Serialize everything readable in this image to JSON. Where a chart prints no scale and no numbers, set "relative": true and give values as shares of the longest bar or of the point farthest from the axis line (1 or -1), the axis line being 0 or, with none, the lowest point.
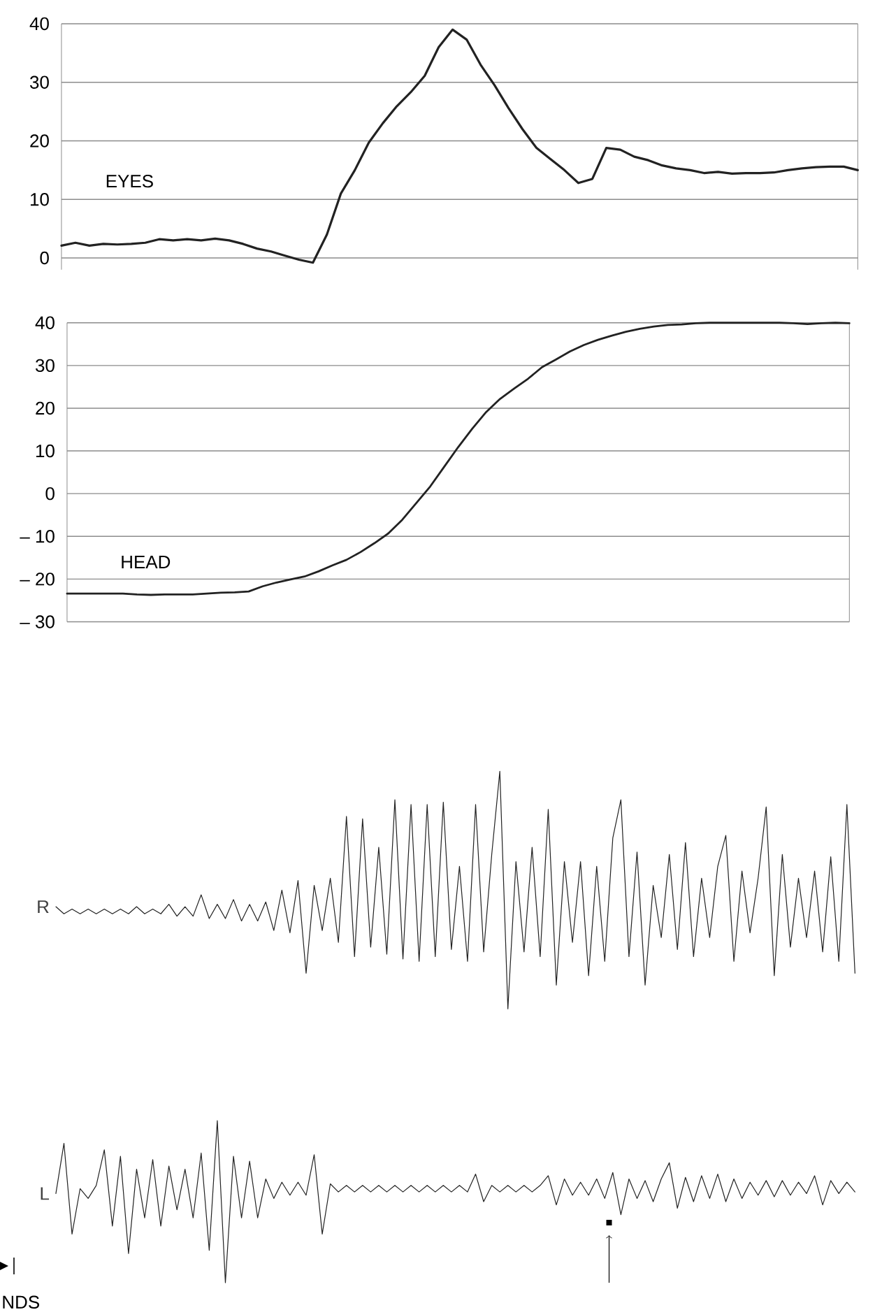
{
  "chart_data": [
    {
      "type": "line",
      "annotations": [
        "EYES"
      ],
      "grid": "y",
      "tick_labels": "y",
      "ylim": [
        -2,
        40
      ],
      "yticks": [
        0,
        10,
        20,
        30,
        40
      ],
      "categories": [
        null,
        null,
        null,
        null,
        null,
        null,
        null,
        null,
        null,
        null,
        null,
        null,
        null,
        null,
        null,
        null,
        null,
        null,
        null,
        null,
        null,
        null,
        null,
        null,
        null,
        null,
        null,
        null,
        null,
        null,
        null,
        null,
        null,
        null,
        null,
        null,
        null,
        null,
        null,
        null,
        null,
        null,
        null,
        null,
        null,
        null,
        null,
        null,
        null,
        null,
        null,
        null,
        null,
        null,
        null,
        null,
        null,
        null
      ],
      "series": [
        {
          "color": "#222222",
          "values": [
            2.1,
            2.6,
            2.1,
            2.4,
            2.3,
            2.4,
            2.6,
            3.2,
            3.0,
            3.2,
            3.0,
            3.3,
            3.0,
            2.4,
            1.6,
            1.1,
            0.4,
            -0.3,
            -0.8,
            4.0,
            11.0,
            15.0,
            19.7,
            23.0,
            25.9,
            28.3,
            31.1,
            36.0,
            39.0,
            37.3,
            33.0,
            29.5,
            25.6,
            22.0,
            18.8,
            16.9,
            15.0,
            12.8,
            13.5,
            18.8,
            18.5,
            17.3,
            16.7,
            15.8,
            15.3,
            15.0,
            14.5,
            14.7,
            14.4,
            14.5,
            14.5,
            14.6,
            15.0,
            15.3,
            15.5,
            15.6,
            15.6,
            15.0
          ]
        }
      ]
    },
    {
      "type": "line",
      "annotations": [
        "HEAD"
      ],
      "grid": "y",
      "tick_labels": "y",
      "ylim": [
        -30,
        40
      ],
      "yticks": [
        {
          "value": -30,
          "label": "– 30"
        },
        {
          "value": -20,
          "label": "– 20"
        },
        {
          "value": -10,
          "label": "– 10"
        },
        0,
        10,
        20,
        30,
        40
      ],
      "categories": [
        null,
        null,
        null,
        null,
        null,
        null,
        null,
        null,
        null,
        null,
        null,
        null,
        null,
        null,
        null,
        null,
        null,
        null,
        null,
        null,
        null,
        null,
        null,
        null,
        null,
        null,
        null,
        null,
        null,
        null,
        null,
        null,
        null,
        null,
        null,
        null,
        null,
        null,
        null,
        null,
        null,
        null,
        null,
        null,
        null,
        null,
        null,
        null,
        null,
        null,
        null,
        null,
        null,
        null,
        null,
        null,
        null
      ],
      "series": [
        {
          "color": "#222222",
          "values": [
            -23.4,
            -23.4,
            -23.4,
            -23.4,
            -23.4,
            -23.6,
            -23.7,
            -23.6,
            -23.6,
            -23.6,
            -23.4,
            -23.2,
            -23.1,
            -22.9,
            -21.7,
            -20.8,
            -20.1,
            -19.4,
            -18.2,
            -16.8,
            -15.5,
            -13.7,
            -11.6,
            -9.3,
            -6.1,
            -2.2,
            1.7,
            6.3,
            10.9,
            15.2,
            19.1,
            22.2,
            24.6,
            26.9,
            29.6,
            31.4,
            33.3,
            34.8,
            36.0,
            37.0,
            37.9,
            38.6,
            39.1,
            39.5,
            39.6,
            39.9,
            40.0,
            40.0,
            40.0,
            40.0,
            40.0,
            40.0,
            39.9,
            39.7,
            39.9,
            40.0,
            39.9
          ]
        }
      ]
    },
    {
      "type": "line",
      "relative": true,
      "categories": [
        null,
        null,
        null,
        null,
        null,
        null,
        null,
        null,
        null,
        null,
        null,
        null,
        null,
        null,
        null,
        null,
        null,
        null,
        null,
        null,
        null,
        null,
        null,
        null,
        null,
        null,
        null,
        null,
        null,
        null,
        null,
        null,
        null,
        null,
        null,
        null,
        null,
        null,
        null,
        null,
        null,
        null,
        null,
        null,
        null,
        null,
        null,
        null,
        null,
        null,
        null,
        null,
        null,
        null,
        null,
        null,
        null,
        null,
        null,
        null,
        null,
        null,
        null,
        null,
        null,
        null,
        null,
        null,
        null,
        null,
        null,
        null,
        null,
        null,
        null,
        null,
        null,
        null,
        null,
        null,
        null,
        null,
        null,
        null,
        null,
        null,
        null,
        null,
        null,
        null,
        null,
        null,
        null,
        null,
        null,
        null,
        null,
        null,
        null,
        null
      ],
      "series": [
        {
          "name": "R",
          "color": "#222222",
          "values": [
            0.43,
            0.4,
            0.42,
            0.4,
            0.42,
            0.4,
            0.42,
            0.4,
            0.42,
            0.4,
            0.43,
            0.4,
            0.42,
            0.4,
            0.44,
            0.39,
            0.43,
            0.39,
            0.48,
            0.38,
            0.44,
            0.38,
            0.46,
            0.37,
            0.44,
            0.37,
            0.45,
            0.33,
            0.5,
            0.32,
            0.54,
            0.15,
            0.52,
            0.33,
            0.55,
            0.28,
            0.81,
            0.22,
            0.8,
            0.26,
            0.68,
            0.23,
            0.88,
            0.21,
            0.86,
            0.2,
            0.86,
            0.22,
            0.87,
            0.25,
            0.6,
            0.2,
            0.86,
            0.24,
            0.65,
            1.0,
            0.0,
            0.62,
            0.24,
            0.68,
            0.22,
            0.84,
            0.1,
            0.62,
            0.28,
            0.62,
            0.14,
            0.6,
            0.2,
            0.72,
            0.88,
            0.22,
            0.66,
            0.1,
            0.52,
            0.3,
            0.65,
            0.25,
            0.7,
            0.22,
            0.55,
            0.3,
            0.6,
            0.73,
            0.2,
            0.58,
            0.32,
            0.55,
            0.85,
            0.14,
            0.65,
            0.26,
            0.55,
            0.3,
            0.58,
            0.24,
            0.64,
            0.2,
            0.86,
            0.15
          ]
        }
      ]
    },
    {
      "type": "line",
      "relative": true,
      "annotations": [
        "NDS"
      ],
      "categories": [
        null,
        null,
        null,
        null,
        null,
        null,
        null,
        null,
        null,
        null,
        null,
        null,
        null,
        null,
        null,
        null,
        null,
        null,
        null,
        null,
        null,
        null,
        null,
        null,
        null,
        null,
        null,
        null,
        null,
        null,
        null,
        null,
        null,
        null,
        null,
        null,
        null,
        null,
        null,
        null,
        null,
        null,
        null,
        null,
        null,
        null,
        null,
        null,
        null,
        null,
        null,
        null,
        null,
        null,
        null,
        null,
        null,
        null,
        null,
        null,
        null,
        null,
        null,
        null,
        null,
        null,
        null,
        null,
        null,
        null,
        null,
        null,
        null,
        null,
        null,
        null,
        null,
        null,
        null,
        null,
        null,
        null,
        null,
        null,
        null,
        null,
        null,
        null,
        null,
        null,
        null,
        null,
        null,
        null,
        null,
        null,
        null,
        null,
        null,
        null
      ],
      "series": [
        {
          "name": "L",
          "color": "#222222",
          "values": [
            0.55,
            0.86,
            0.3,
            0.58,
            0.52,
            0.6,
            0.82,
            0.35,
            0.78,
            0.18,
            0.7,
            0.4,
            0.76,
            0.35,
            0.72,
            0.45,
            0.7,
            0.4,
            0.8,
            0.2,
            1.0,
            0.0,
            0.78,
            0.4,
            0.75,
            0.4,
            0.64,
            0.52,
            0.62,
            0.54,
            0.62,
            0.54,
            0.79,
            0.3,
            0.61,
            0.56,
            0.6,
            0.56,
            0.6,
            0.56,
            0.6,
            0.56,
            0.6,
            0.56,
            0.6,
            0.56,
            0.6,
            0.56,
            0.6,
            0.56,
            0.6,
            0.56,
            0.67,
            0.5,
            0.6,
            0.56,
            0.6,
            0.56,
            0.6,
            0.56,
            0.6,
            0.66,
            0.48,
            0.64,
            0.54,
            0.62,
            0.54,
            0.64,
            0.52,
            0.68,
            0.42,
            0.64,
            0.52,
            0.63,
            0.5,
            0.64,
            0.74,
            0.46,
            0.65,
            0.5,
            0.66,
            0.52,
            0.67,
            0.5,
            0.64,
            0.52,
            0.62,
            0.54,
            0.63,
            0.53,
            0.63,
            0.54,
            0.62,
            0.55,
            0.66,
            0.48,
            0.63,
            0.55,
            0.62,
            0.56
          ]
        }
      ]
    }
  ]
}
